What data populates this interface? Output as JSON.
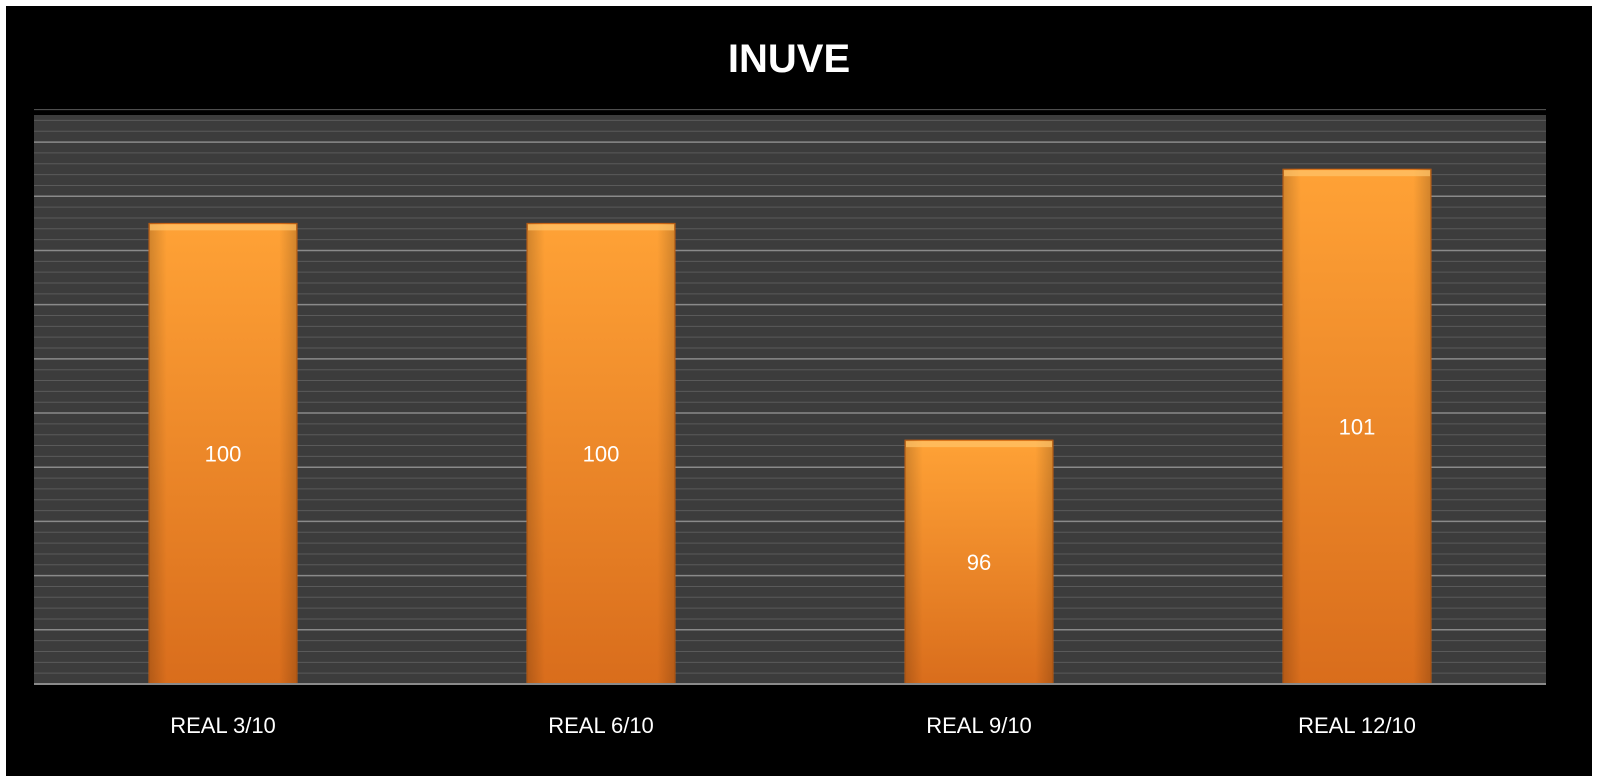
{
  "chart_data": {
    "type": "bar",
    "title": "INUVE",
    "categories": [
      "REAL 3/10",
      "REAL 6/10",
      "REAL 9/10",
      "REAL 12/10"
    ],
    "values": [
      100,
      100,
      96,
      101
    ],
    "ylim": [
      91.5,
      102
    ],
    "grid": true,
    "minor_grid": true,
    "xlabel": "",
    "ylabel": "",
    "colors": {
      "bar_top": "#ffa236",
      "bar_bottom": "#d96d1c",
      "bar_edge": "#c65f12",
      "plot_bg": "#3c3c3c",
      "major_grid": "#8a8a8a",
      "minor_grid": "#5a5a5a",
      "frame_bg": "#000000",
      "text": "#ffffff"
    }
  }
}
